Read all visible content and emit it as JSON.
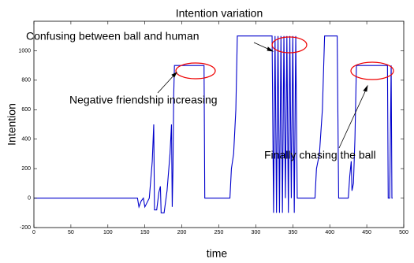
{
  "chart_data": {
    "type": "line",
    "title": "Intention variation",
    "x_label": "time",
    "y_label": "Intention",
    "xlim": [
      0,
      500
    ],
    "ylim": [
      -200,
      1200
    ],
    "xticks": [
      0,
      50,
      100,
      150,
      200,
      250,
      300,
      350,
      400,
      450,
      500
    ],
    "yticks": [
      -200,
      0,
      200,
      400,
      600,
      800,
      1000
    ],
    "series": [
      {
        "color": "#0000cc",
        "x": [
          0,
          140,
          142,
          145,
          148,
          150,
          153,
          156,
          160,
          162,
          163,
          166,
          169,
          171,
          172,
          176,
          180,
          184,
          186,
          187,
          188,
          189,
          190,
          230,
          231,
          265,
          267,
          270,
          273,
          275,
          322,
          324,
          326,
          328,
          330,
          332,
          334,
          336,
          338,
          340,
          342,
          344,
          346,
          348,
          350,
          352,
          354,
          356,
          380,
          382,
          386,
          390,
          393,
          410,
          412,
          425,
          427,
          429,
          430,
          432,
          434,
          436,
          478,
          479,
          481,
          483,
          484,
          485
        ],
        "values": [
          0,
          0,
          -60,
          -20,
          0,
          -60,
          -30,
          0,
          250,
          500,
          -80,
          -80,
          40,
          80,
          -100,
          -100,
          50,
          300,
          500,
          -60,
          200,
          700,
          900,
          900,
          0,
          0,
          200,
          300,
          600,
          1100,
          1100,
          -100,
          1100,
          -100,
          1100,
          -100,
          1100,
          -100,
          1100,
          0,
          1100,
          -100,
          1100,
          0,
          1100,
          -100,
          1100,
          0,
          0,
          200,
          300,
          600,
          1100,
          1100,
          0,
          0,
          150,
          250,
          50,
          100,
          400,
          900,
          900,
          0,
          0,
          900,
          0,
          0
        ]
      }
    ],
    "annotations": [
      "Confusing between ball and human",
      "Negative friendship increasing",
      "Finally chasing the ball"
    ]
  }
}
